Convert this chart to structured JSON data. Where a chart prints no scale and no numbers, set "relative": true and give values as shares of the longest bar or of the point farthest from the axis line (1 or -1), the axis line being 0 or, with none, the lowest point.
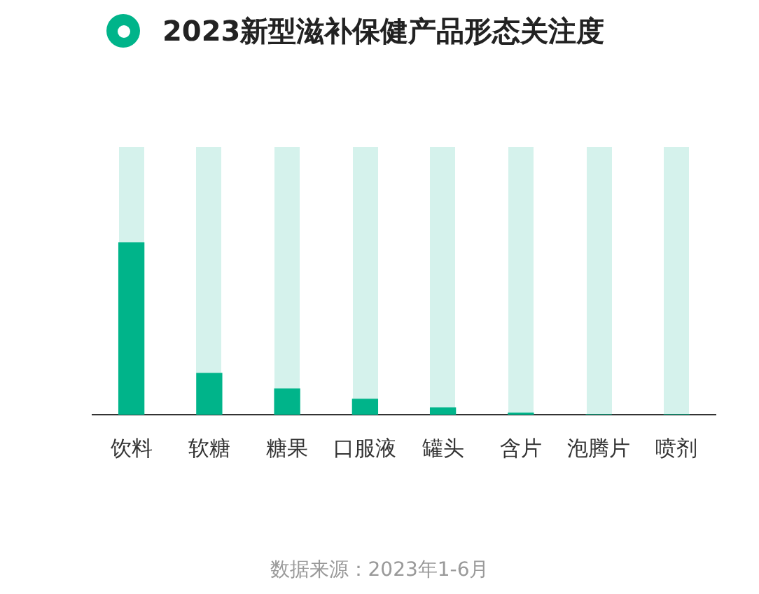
{
  "chart_data": {
    "type": "bar",
    "title": "2023新型滋补保健产品形态关注度",
    "categories": [
      "饮料",
      "软糖",
      "糖果",
      "口服液",
      "罐头",
      "含片",
      "泡腾片",
      "喷剂"
    ],
    "values": [
      1,
      0.24,
      0.15,
      0.09,
      0.04,
      0.01,
      0,
      0
    ],
    "color": "#00b48a",
    "relative": true,
    "annotations": [
      "数据来源：2023年1-6月"
    ]
  }
}
